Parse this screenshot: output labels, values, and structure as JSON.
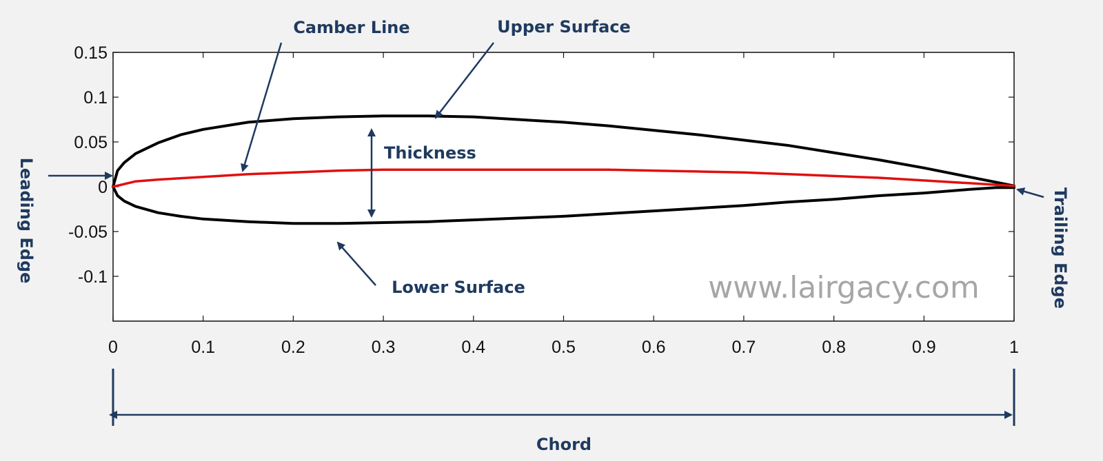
{
  "colors": {
    "background": "#f2f2f2",
    "plot_background": "#ffffff",
    "airfoil_outline": "#000000",
    "camber_line": "#e01010",
    "annotation": "#1f3a5f",
    "axis": "#111111",
    "watermark": "#a6a6a6"
  },
  "annotations": {
    "camber_line": "Camber Line",
    "upper_surface": "Upper Surface",
    "thickness": "Thickness",
    "lower_surface": "Lower Surface",
    "leading_edge": "Leading Edge",
    "trailing_edge": "Trailing Edge",
    "chord": "Chord"
  },
  "watermark": "www.lairgacy.com",
  "chart_data": {
    "type": "line",
    "title": "",
    "xlabel": "",
    "ylabel": "",
    "xlim": [
      0,
      1
    ],
    "ylim": [
      -0.15,
      0.15
    ],
    "x_ticks": [
      0,
      0.1,
      0.2,
      0.3,
      0.4,
      0.5,
      0.6,
      0.7,
      0.8,
      0.9,
      1
    ],
    "x_tick_labels": [
      "0",
      "0.1",
      "0.2",
      "0.3",
      "0.4",
      "0.5",
      "0.6",
      "0.7",
      "0.8",
      "0.9",
      "1"
    ],
    "y_ticks": [
      0.15,
      0.1,
      0.05,
      0,
      -0.05,
      -0.1
    ],
    "y_tick_labels": [
      "0.15",
      "0.1",
      "0.05",
      "0",
      "-0.05",
      "-0.1"
    ],
    "grid": false,
    "series": [
      {
        "key": "upper",
        "color": "#000000",
        "x": [
          0,
          0.005,
          0.0125,
          0.025,
          0.05,
          0.075,
          0.1,
          0.15,
          0.2,
          0.25,
          0.3,
          0.35,
          0.4,
          0.45,
          0.5,
          0.55,
          0.6,
          0.65,
          0.7,
          0.75,
          0.8,
          0.85,
          0.9,
          0.95,
          0.98,
          1.0
        ],
        "y": [
          0,
          0.018,
          0.027,
          0.037,
          0.049,
          0.058,
          0.064,
          0.072,
          0.076,
          0.078,
          0.079,
          0.079,
          0.078,
          0.075,
          0.072,
          0.068,
          0.063,
          0.058,
          0.052,
          0.046,
          0.038,
          0.03,
          0.021,
          0.011,
          0.005,
          0.001
        ]
      },
      {
        "key": "lower",
        "color": "#000000",
        "x": [
          0,
          0.005,
          0.0125,
          0.025,
          0.05,
          0.075,
          0.1,
          0.15,
          0.2,
          0.25,
          0.3,
          0.35,
          0.4,
          0.45,
          0.5,
          0.55,
          0.6,
          0.65,
          0.7,
          0.75,
          0.8,
          0.85,
          0.9,
          0.95,
          0.98,
          1.0
        ],
        "y": [
          0,
          -0.01,
          -0.016,
          -0.022,
          -0.029,
          -0.033,
          -0.036,
          -0.039,
          -0.041,
          -0.041,
          -0.04,
          -0.039,
          -0.037,
          -0.035,
          -0.033,
          -0.03,
          -0.027,
          -0.024,
          -0.021,
          -0.017,
          -0.014,
          -0.01,
          -0.007,
          -0.003,
          -0.001,
          -0.001
        ]
      },
      {
        "key": "camber",
        "color": "#e01010",
        "x": [
          0,
          0.025,
          0.05,
          0.1,
          0.15,
          0.2,
          0.25,
          0.3,
          0.35,
          0.4,
          0.45,
          0.5,
          0.55,
          0.6,
          0.65,
          0.7,
          0.75,
          0.8,
          0.85,
          0.9,
          0.95,
          1.0
        ],
        "y": [
          0,
          0.006,
          0.008,
          0.011,
          0.014,
          0.016,
          0.018,
          0.019,
          0.019,
          0.019,
          0.019,
          0.019,
          0.019,
          0.018,
          0.017,
          0.016,
          0.014,
          0.012,
          0.01,
          0.007,
          0.004,
          0.001
        ]
      }
    ]
  }
}
